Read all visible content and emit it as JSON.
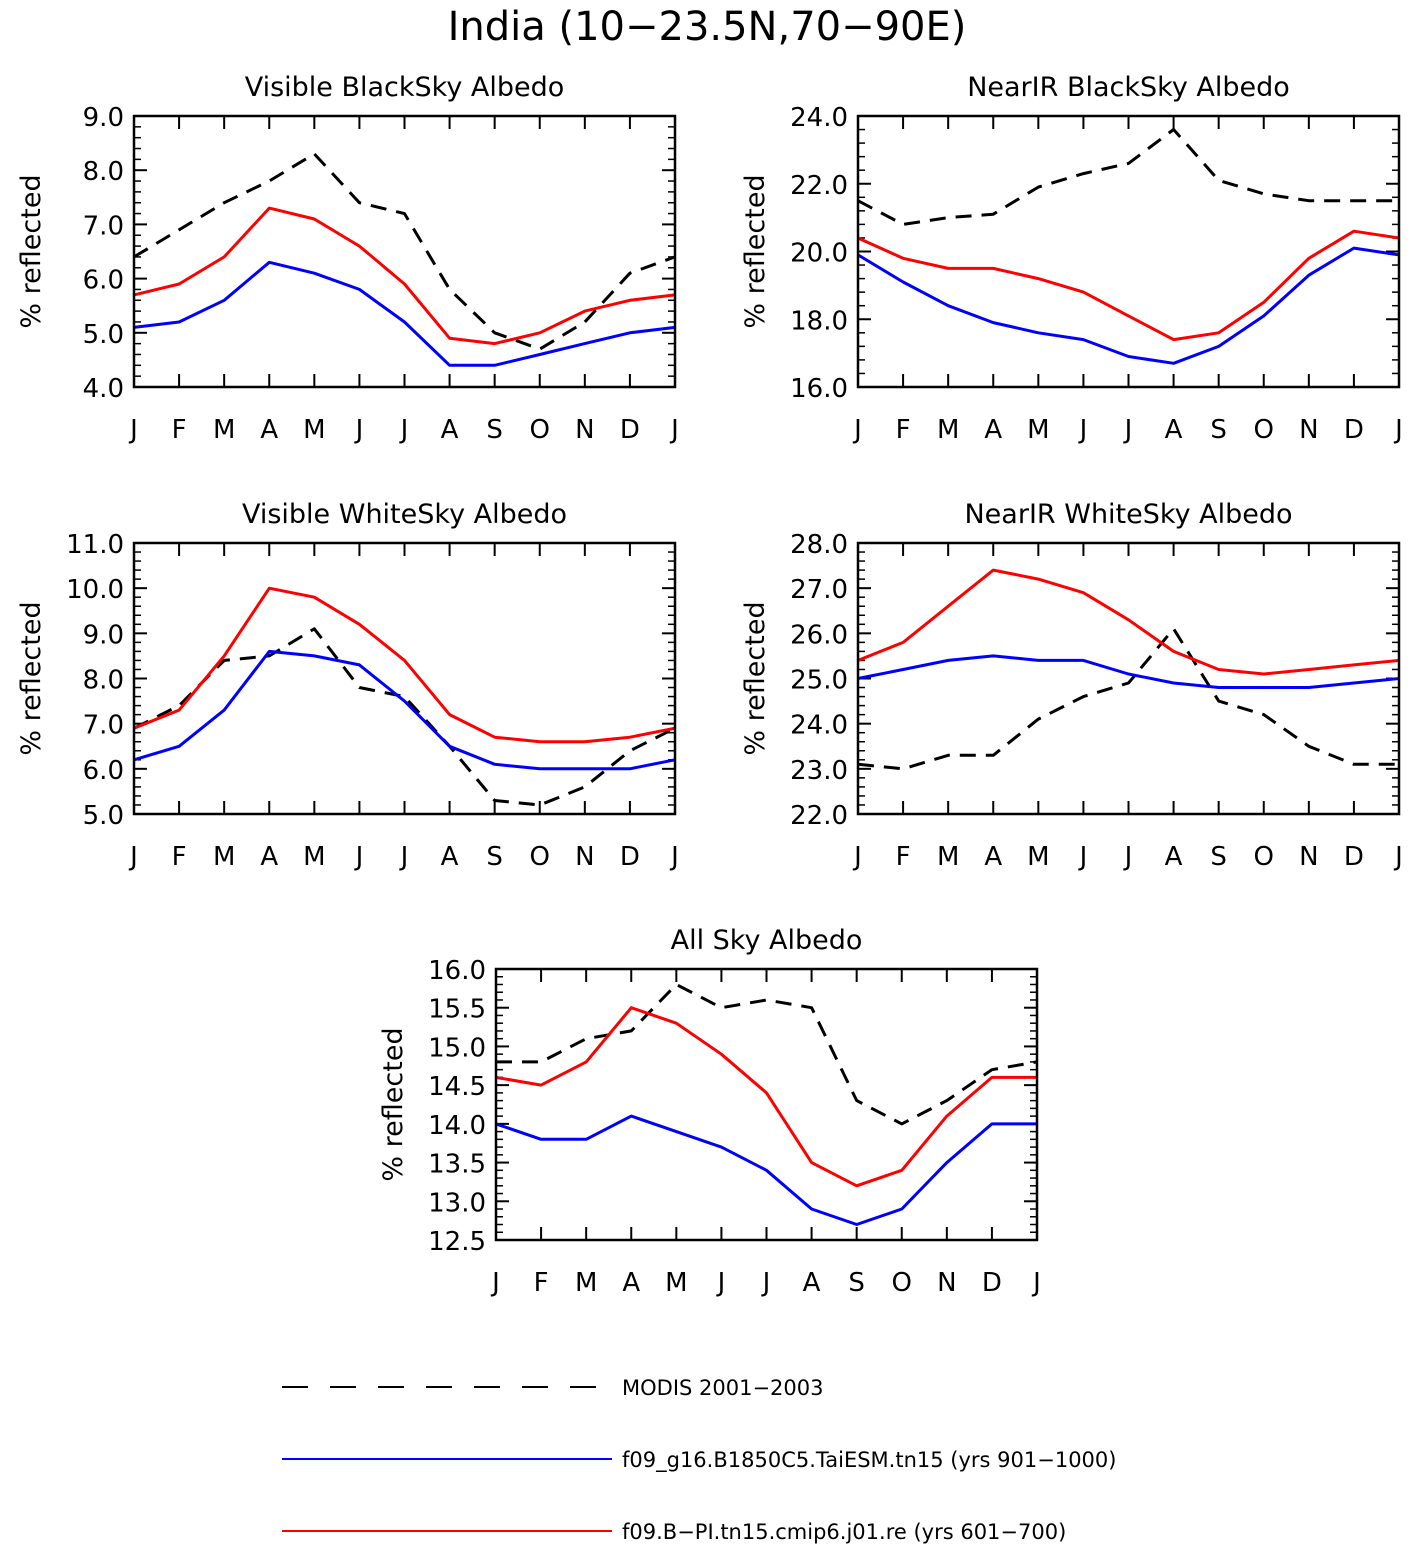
{
  "figure_title": "India (10−23.5N,70−90E)",
  "colors": {
    "modis": "#000000",
    "taiesm": "#0000ff",
    "cmip6": "#ff0000"
  },
  "legend": [
    {
      "label": "MODIS 2001−2003",
      "style": "dashed",
      "color_key": "modis"
    },
    {
      "label": "f09_g16.B1850C5.TaiESM.tn15 (yrs 901−1000)",
      "style": "solid",
      "color_key": "taiesm"
    },
    {
      "label": "f09.B−PI.tn15.cmip6.j01.re (yrs 601−700)",
      "style": "solid",
      "color_key": "cmip6"
    }
  ],
  "chart_data": [
    {
      "type": "line",
      "title": "Visible BlackSky Albedo",
      "ylabel": "% reflected",
      "xlabel": "",
      "categories": [
        "J",
        "F",
        "M",
        "A",
        "M",
        "J",
        "J",
        "A",
        "S",
        "O",
        "N",
        "D",
        "J"
      ],
      "ylim": [
        4.0,
        9.0
      ],
      "yticks": [
        "4.0",
        "5.0",
        "6.0",
        "7.0",
        "8.0",
        "9.0"
      ],
      "series": [
        {
          "name": "MODIS 2001−2003",
          "color_key": "modis",
          "style": "dashed",
          "values": [
            6.4,
            6.9,
            7.4,
            7.8,
            8.3,
            7.4,
            7.2,
            5.8,
            5.0,
            4.7,
            5.2,
            6.1,
            6.4
          ]
        },
        {
          "name": "f09_g16.B1850C5.TaiESM.tn15 (yrs 901−1000)",
          "color_key": "taiesm",
          "style": "solid",
          "values": [
            5.1,
            5.2,
            5.6,
            6.3,
            6.1,
            5.8,
            5.2,
            4.4,
            4.4,
            4.6,
            4.8,
            5.0,
            5.1
          ]
        },
        {
          "name": "f09.B−PI.tn15.cmip6.j01.re (yrs 601−700)",
          "color_key": "cmip6",
          "style": "solid",
          "values": [
            5.7,
            5.9,
            6.4,
            7.3,
            7.1,
            6.6,
            5.9,
            4.9,
            4.8,
            5.0,
            5.4,
            5.6,
            5.7
          ]
        }
      ]
    },
    {
      "type": "line",
      "title": "NearIR BlackSky Albedo",
      "ylabel": "% reflected",
      "xlabel": "",
      "categories": [
        "J",
        "F",
        "M",
        "A",
        "M",
        "J",
        "J",
        "A",
        "S",
        "O",
        "N",
        "D",
        "J"
      ],
      "ylim": [
        16.0,
        24.0
      ],
      "yticks": [
        "16.0",
        "18.0",
        "20.0",
        "22.0",
        "24.0"
      ],
      "series": [
        {
          "name": "MODIS 2001−2003",
          "color_key": "modis",
          "style": "dashed",
          "values": [
            21.5,
            20.8,
            21.0,
            21.1,
            21.9,
            22.3,
            22.6,
            23.6,
            22.1,
            21.7,
            21.5,
            21.5,
            21.5
          ]
        },
        {
          "name": "f09_g16.B1850C5.TaiESM.tn15 (yrs 901−1000)",
          "color_key": "taiesm",
          "style": "solid",
          "values": [
            19.9,
            19.1,
            18.4,
            17.9,
            17.6,
            17.4,
            16.9,
            16.7,
            17.2,
            18.1,
            19.3,
            20.1,
            19.9
          ]
        },
        {
          "name": "f09.B−PI.tn15.cmip6.j01.re (yrs 601−700)",
          "color_key": "cmip6",
          "style": "solid",
          "values": [
            20.4,
            19.8,
            19.5,
            19.5,
            19.2,
            18.8,
            18.1,
            17.4,
            17.6,
            18.5,
            19.8,
            20.6,
            20.4
          ]
        }
      ]
    },
    {
      "type": "line",
      "title": "Visible WhiteSky Albedo",
      "ylabel": "% reflected",
      "xlabel": "",
      "categories": [
        "J",
        "F",
        "M",
        "A",
        "M",
        "J",
        "J",
        "A",
        "S",
        "O",
        "N",
        "D",
        "J"
      ],
      "ylim": [
        5.0,
        11.0
      ],
      "yticks": [
        "5.0",
        "6.0",
        "7.0",
        "8.0",
        "9.0",
        "10.0",
        "11.0"
      ],
      "series": [
        {
          "name": "MODIS 2001−2003",
          "color_key": "modis",
          "style": "dashed",
          "values": [
            6.9,
            7.4,
            8.4,
            8.5,
            9.1,
            7.8,
            7.6,
            6.5,
            5.3,
            5.2,
            5.6,
            6.4,
            6.9
          ]
        },
        {
          "name": "f09_g16.B1850C5.TaiESM.tn15 (yrs 901−1000)",
          "color_key": "taiesm",
          "style": "solid",
          "values": [
            6.2,
            6.5,
            7.3,
            8.6,
            8.5,
            8.3,
            7.5,
            6.5,
            6.1,
            6.0,
            6.0,
            6.0,
            6.2
          ]
        },
        {
          "name": "f09.B−PI.tn15.cmip6.j01.re (yrs 601−700)",
          "color_key": "cmip6",
          "style": "solid",
          "values": [
            6.9,
            7.3,
            8.5,
            10.0,
            9.8,
            9.2,
            8.4,
            7.2,
            6.7,
            6.6,
            6.6,
            6.7,
            6.9
          ]
        }
      ]
    },
    {
      "type": "line",
      "title": "NearIR WhiteSky Albedo",
      "ylabel": "% reflected",
      "xlabel": "",
      "categories": [
        "J",
        "F",
        "M",
        "A",
        "M",
        "J",
        "J",
        "A",
        "S",
        "O",
        "N",
        "D",
        "J"
      ],
      "ylim": [
        22.0,
        28.0
      ],
      "yticks": [
        "22.0",
        "23.0",
        "24.0",
        "25.0",
        "26.0",
        "27.0",
        "28.0"
      ],
      "series": [
        {
          "name": "MODIS 2001−2003",
          "color_key": "modis",
          "style": "dashed",
          "values": [
            23.1,
            23.0,
            23.3,
            23.3,
            24.1,
            24.6,
            24.9,
            26.1,
            24.5,
            24.2,
            23.5,
            23.1,
            23.1
          ]
        },
        {
          "name": "f09_g16.B1850C5.TaiESM.tn15 (yrs 901−1000)",
          "color_key": "taiesm",
          "style": "solid",
          "values": [
            25.0,
            25.2,
            25.4,
            25.5,
            25.4,
            25.4,
            25.1,
            24.9,
            24.8,
            24.8,
            24.8,
            24.9,
            25.0
          ]
        },
        {
          "name": "f09.B−PI.tn15.cmip6.j01.re (yrs 601−700)",
          "color_key": "cmip6",
          "style": "solid",
          "values": [
            25.4,
            25.8,
            26.6,
            27.4,
            27.2,
            26.9,
            26.3,
            25.6,
            25.2,
            25.1,
            25.2,
            25.3,
            25.4
          ]
        }
      ]
    },
    {
      "type": "line",
      "title": "All Sky Albedo",
      "ylabel": "% reflected",
      "xlabel": "",
      "categories": [
        "J",
        "F",
        "M",
        "A",
        "M",
        "J",
        "J",
        "A",
        "S",
        "O",
        "N",
        "D",
        "J"
      ],
      "ylim": [
        12.5,
        16.0
      ],
      "yticks": [
        "12.5",
        "13.0",
        "13.5",
        "14.0",
        "14.5",
        "15.0",
        "15.5",
        "16.0"
      ],
      "series": [
        {
          "name": "MODIS 2001−2003",
          "color_key": "modis",
          "style": "dashed",
          "values": [
            14.8,
            14.8,
            15.1,
            15.2,
            15.8,
            15.5,
            15.6,
            15.5,
            14.3,
            14.0,
            14.3,
            14.7,
            14.8
          ]
        },
        {
          "name": "f09_g16.B1850C5.TaiESM.tn15 (yrs 901−1000)",
          "color_key": "taiesm",
          "style": "solid",
          "values": [
            14.0,
            13.8,
            13.8,
            14.1,
            13.9,
            13.7,
            13.4,
            12.9,
            12.7,
            12.9,
            13.5,
            14.0,
            14.0
          ]
        },
        {
          "name": "f09.B−PI.tn15.cmip6.j01.re (yrs 601−700)",
          "color_key": "cmip6",
          "style": "solid",
          "values": [
            14.6,
            14.5,
            14.8,
            15.5,
            15.3,
            14.9,
            14.4,
            13.5,
            13.2,
            13.4,
            14.1,
            14.6,
            14.6
          ]
        }
      ]
    }
  ]
}
